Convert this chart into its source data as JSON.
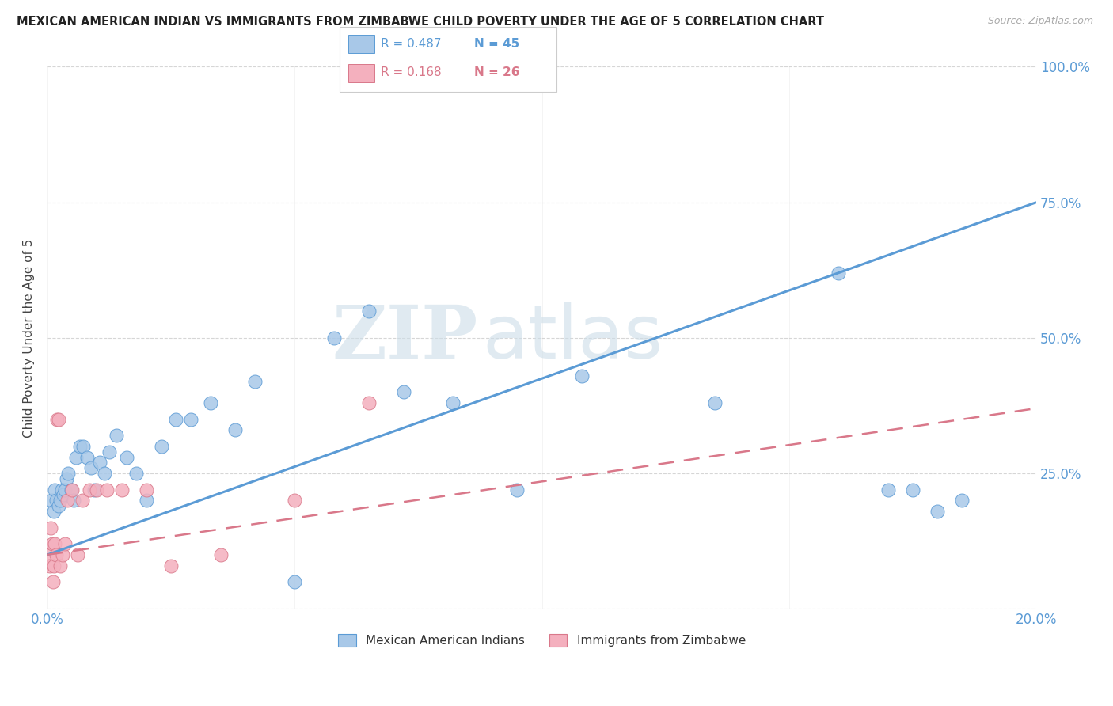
{
  "title": "MEXICAN AMERICAN INDIAN VS IMMIGRANTS FROM ZIMBABWE CHILD POVERTY UNDER THE AGE OF 5 CORRELATION CHART",
  "source": "Source: ZipAtlas.com",
  "ylabel": "Child Poverty Under the Age of 5",
  "xlim": [
    0.0,
    20.0
  ],
  "ylim": [
    0.0,
    100.0
  ],
  "ytick_vals": [
    0,
    25,
    50,
    75,
    100
  ],
  "ytick_labels_right": [
    "",
    "25.0%",
    "50.0%",
    "75.0%",
    "100.0%"
  ],
  "xtick_vals": [
    0,
    5,
    10,
    15,
    20
  ],
  "xtick_labels": [
    "0.0%",
    "",
    "",
    "",
    "20.0%"
  ],
  "blue_color": "#a8c8e8",
  "blue_edge": "#5b9bd5",
  "pink_color": "#f4b0be",
  "pink_edge": "#d9788a",
  "blue_line_color": "#5b9bd5",
  "pink_line_color": "#d9788a",
  "label_color": "#5b9bd5",
  "legend_blue_R": "R = 0.487",
  "legend_blue_N": "N = 45",
  "legend_pink_R": "R = 0.168",
  "legend_pink_N": "N = 26",
  "legend_label_blue": "Mexican American Indians",
  "legend_label_pink": "Immigrants from Zimbabwe",
  "watermark_zip": "ZIP",
  "watermark_atlas": "atlas",
  "blue_line_x0": 0,
  "blue_line_x1": 20,
  "blue_line_y0": 10,
  "blue_line_y1": 75,
  "pink_line_x0": 0,
  "pink_line_x1": 20,
  "pink_line_y0": 10,
  "pink_line_y1": 37,
  "blue_x": [
    0.08,
    0.12,
    0.15,
    0.18,
    0.22,
    0.25,
    0.28,
    0.32,
    0.35,
    0.38,
    0.42,
    0.48,
    0.52,
    0.58,
    0.65,
    0.72,
    0.8,
    0.88,
    0.95,
    1.05,
    1.15,
    1.25,
    1.4,
    1.6,
    1.8,
    2.0,
    2.3,
    2.6,
    2.9,
    3.3,
    3.8,
    4.2,
    5.0,
    5.8,
    6.5,
    7.2,
    8.2,
    9.5,
    10.8,
    13.5,
    16.0,
    17.0,
    17.5,
    18.0,
    18.5
  ],
  "blue_y": [
    20,
    18,
    22,
    20,
    19,
    20,
    22,
    21,
    22,
    24,
    25,
    22,
    20,
    28,
    30,
    30,
    28,
    26,
    22,
    27,
    25,
    29,
    32,
    28,
    25,
    20,
    30,
    35,
    35,
    38,
    33,
    42,
    5,
    50,
    55,
    40,
    38,
    22,
    43,
    38,
    62,
    22,
    22,
    18,
    20
  ],
  "pink_x": [
    0.03,
    0.05,
    0.07,
    0.09,
    0.11,
    0.13,
    0.15,
    0.17,
    0.19,
    0.22,
    0.25,
    0.3,
    0.35,
    0.4,
    0.5,
    0.6,
    0.7,
    0.85,
    1.0,
    1.2,
    1.5,
    2.0,
    2.5,
    3.5,
    5.0,
    6.5
  ],
  "pink_y": [
    10,
    8,
    15,
    12,
    5,
    8,
    12,
    10,
    35,
    35,
    8,
    10,
    12,
    20,
    22,
    10,
    20,
    22,
    22,
    22,
    22,
    22,
    8,
    10,
    20,
    38
  ]
}
